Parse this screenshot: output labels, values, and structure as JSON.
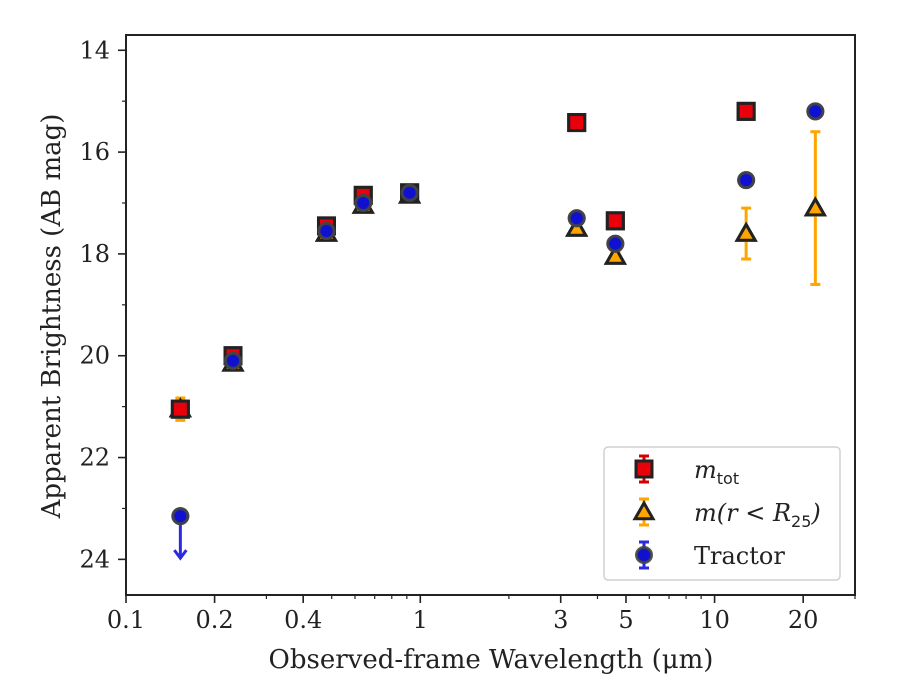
{
  "chart_data": {
    "type": "scatter",
    "xlabel": "Observed-frame Wavelength (μm)",
    "ylabel": "Apparent Brightness (AB mag)",
    "xscale": "log",
    "xlim": [
      0.1,
      30
    ],
    "ylim": [
      24.7,
      13.7
    ],
    "y_inverted": true,
    "grid": false,
    "legend_position": "lower-right",
    "xticks": [
      {
        "value": 0.1,
        "label": "0.1"
      },
      {
        "value": 0.2,
        "label": "0.2"
      },
      {
        "value": 0.4,
        "label": "0.4"
      },
      {
        "value": 1,
        "label": "1"
      },
      {
        "value": 3,
        "label": "3"
      },
      {
        "value": 5,
        "label": "5"
      },
      {
        "value": 10,
        "label": "10"
      },
      {
        "value": 20,
        "label": "20"
      }
    ],
    "yticks": [
      {
        "value": 14,
        "label": "14"
      },
      {
        "value": 16,
        "label": "16"
      },
      {
        "value": 18,
        "label": "18"
      },
      {
        "value": 20,
        "label": "20"
      },
      {
        "value": 22,
        "label": "22"
      },
      {
        "value": 24,
        "label": "24"
      }
    ],
    "series": [
      {
        "name": "m_tot",
        "legend_main": "m",
        "legend_sub": "tot",
        "marker": "square",
        "color": "#e8000b",
        "edge_color": "#222222",
        "errbar_color": "#d40000",
        "points": [
          {
            "x": 0.153,
            "y": 21.05,
            "err": 0.1
          },
          {
            "x": 0.231,
            "y": 20.0,
            "err": 0.08
          },
          {
            "x": 0.48,
            "y": 17.45,
            "err": 0.05
          },
          {
            "x": 0.64,
            "y": 16.85,
            "err": 0.05
          },
          {
            "x": 0.92,
            "y": 16.8,
            "err": 0.05
          },
          {
            "x": 3.4,
            "y": 15.42,
            "err": 0.05
          },
          {
            "x": 4.6,
            "y": 17.35,
            "err": 0.05
          },
          {
            "x": 12.8,
            "y": 15.2,
            "err": 0.05
          }
        ]
      },
      {
        "name": "m(r<R25)",
        "legend_main": "m(r < R",
        "legend_sub": "25",
        "legend_tail": ")",
        "marker": "triangle",
        "color": "#ffa500",
        "edge_color": "#222222",
        "errbar_color": "#ffa500",
        "points": [
          {
            "x": 0.153,
            "y": 21.05,
            "err": 0.22
          },
          {
            "x": 0.231,
            "y": 20.15,
            "err": 0.06
          },
          {
            "x": 0.48,
            "y": 17.6,
            "err": 0.04
          },
          {
            "x": 0.64,
            "y": 17.05,
            "err": 0.04
          },
          {
            "x": 0.92,
            "y": 16.85,
            "err": 0.04
          },
          {
            "x": 3.4,
            "y": 17.5,
            "err": 0.05
          },
          {
            "x": 4.6,
            "y": 18.05,
            "err": 0.06
          },
          {
            "x": 12.8,
            "y": 17.6,
            "err": 0.5
          },
          {
            "x": 22.0,
            "y": 17.1,
            "err": 1.5
          }
        ]
      },
      {
        "name": "Tractor",
        "legend_main": "Tractor",
        "marker": "circle",
        "color": "#1010d0",
        "edge_color": "#444444",
        "errbar_color": "#2a2ae0",
        "points": [
          {
            "x": 0.153,
            "y": 23.15,
            "err": 0.08,
            "upper_limit": true
          },
          {
            "x": 0.231,
            "y": 20.1,
            "err": 0.05
          },
          {
            "x": 0.48,
            "y": 17.55,
            "err": 0.05
          },
          {
            "x": 0.64,
            "y": 17.0,
            "err": 0.05
          },
          {
            "x": 0.92,
            "y": 16.8,
            "err": 0.05
          },
          {
            "x": 3.4,
            "y": 17.3,
            "err": 0.05
          },
          {
            "x": 4.6,
            "y": 17.8,
            "err": 0.06
          },
          {
            "x": 12.8,
            "y": 16.55,
            "err": 0.05
          },
          {
            "x": 22.0,
            "y": 15.2,
            "err": 0.05
          }
        ]
      }
    ]
  }
}
